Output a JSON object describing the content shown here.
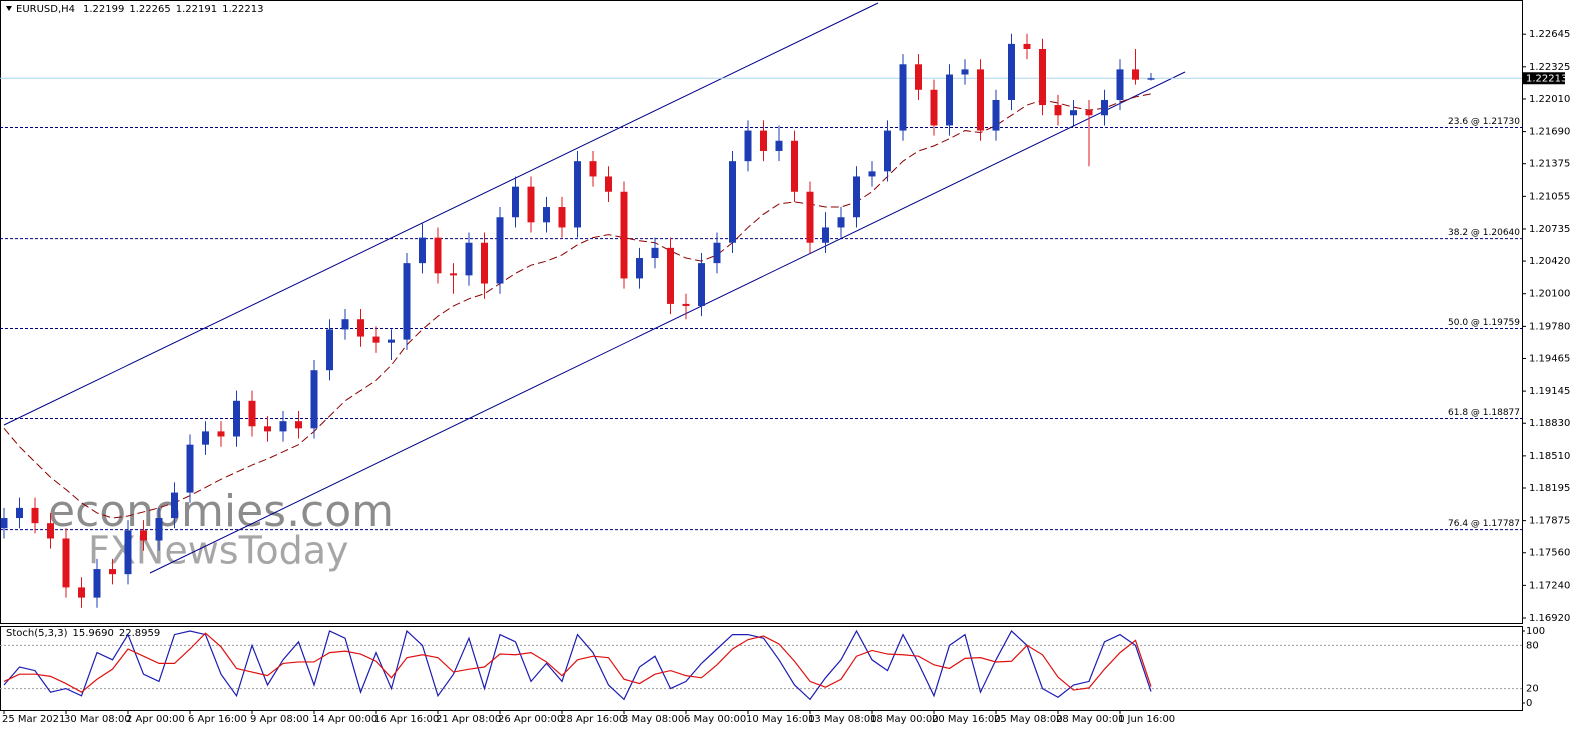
{
  "chart_data": {
    "type": "candlestick",
    "title": "EURUSD,H4",
    "categories": [
      "25 Mar 2021",
      null,
      null,
      null,
      "30 Mar 08:00",
      null,
      null,
      null,
      "2 Apr 00:00",
      null,
      null,
      null,
      "6 Apr 16:00",
      null,
      null,
      null,
      "9 Apr 08:00",
      null,
      null,
      null,
      "14 Apr 00:00",
      null,
      null,
      null,
      "16 Apr 16:00",
      null,
      null,
      null,
      "21 Apr 08:00",
      null,
      null,
      null,
      "26 Apr 00:00",
      null,
      null,
      null,
      "28 Apr 16:00",
      null,
      null,
      null,
      "3 May 08:00",
      null,
      null,
      null,
      "6 May 00:00",
      null,
      null,
      null,
      "10 May 16:00",
      null,
      null,
      null,
      "13 May 08:00",
      null,
      null,
      null,
      "18 May 00:00",
      null,
      null,
      null,
      "20 May 16:00",
      null,
      null,
      null,
      "25 May 08:00",
      null,
      null,
      null,
      "28 May 00:00",
      null,
      null,
      null,
      "1 Jun 16:00",
      null,
      null
    ],
    "open": [
      1.178,
      1.179,
      1.18,
      1.1785,
      1.177,
      1.1722,
      1.1712,
      1.174,
      1.1735,
      1.1778,
      1.1768,
      1.179,
      1.1815,
      1.1862,
      1.1875,
      1.187,
      1.1905,
      1.188,
      1.1875,
      1.1885,
      1.1878,
      1.1935,
      1.1975,
      1.1985,
      1.1968,
      1.1962,
      1.1965,
      1.204,
      1.2065,
      1.203,
      1.2028,
      1.206,
      1.202,
      1.2085,
      1.2115,
      1.208,
      1.2095,
      1.2075,
      1.214,
      1.2125,
      1.211,
      1.2025,
      1.2045,
      1.2055,
      1.2,
      1.1998,
      1.204,
      1.206,
      1.214,
      1.217,
      1.215,
      1.216,
      1.211,
      1.206,
      1.2075,
      1.2085,
      1.2125,
      1.213,
      1.217,
      1.2235,
      1.221,
      1.2175,
      1.2225,
      1.223,
      1.217,
      1.22,
      1.2255,
      1.225,
      1.2195,
      1.2185,
      1.219,
      1.2185,
      1.22,
      1.223,
      1.22199
    ],
    "high": [
      1.18,
      1.181,
      1.181,
      1.1795,
      1.178,
      1.1732,
      1.175,
      1.175,
      1.1788,
      1.1788,
      1.18,
      1.1825,
      1.1872,
      1.1885,
      1.1885,
      1.1915,
      1.1915,
      1.189,
      1.1895,
      1.1895,
      1.1945,
      1.1985,
      1.1995,
      1.1995,
      1.1978,
      1.1975,
      1.205,
      1.208,
      1.2075,
      1.204,
      1.207,
      1.207,
      1.2095,
      1.2125,
      1.2125,
      1.2105,
      1.2105,
      1.215,
      1.215,
      1.2135,
      1.212,
      1.2055,
      1.2065,
      1.2065,
      1.201,
      1.205,
      1.207,
      1.215,
      1.218,
      1.218,
      1.2175,
      1.217,
      1.212,
      1.209,
      1.2095,
      1.2135,
      1.214,
      1.218,
      1.2245,
      1.2245,
      1.222,
      1.2235,
      1.224,
      1.224,
      1.221,
      1.2265,
      1.2265,
      1.226,
      1.2205,
      1.22,
      1.22,
      1.221,
      1.224,
      1.225,
      1.22265
    ],
    "low": [
      1.177,
      1.178,
      1.1775,
      1.176,
      1.1712,
      1.1702,
      1.1702,
      1.1725,
      1.1725,
      1.1758,
      1.1758,
      1.178,
      1.1805,
      1.1852,
      1.186,
      1.186,
      1.187,
      1.1865,
      1.1865,
      1.1868,
      1.1868,
      1.1925,
      1.1965,
      1.1958,
      1.1952,
      1.1945,
      1.1955,
      1.203,
      1.202,
      1.201,
      1.2018,
      1.2005,
      1.201,
      1.2075,
      1.207,
      1.207,
      1.2065,
      1.2065,
      1.2115,
      1.21,
      1.2015,
      1.2015,
      1.2035,
      1.199,
      1.1985,
      1.1988,
      1.203,
      1.205,
      1.213,
      1.214,
      1.214,
      1.21,
      1.205,
      1.205,
      1.2065,
      1.2075,
      1.2115,
      1.212,
      1.216,
      1.22,
      1.2165,
      1.2165,
      1.2215,
      1.216,
      1.216,
      1.219,
      1.224,
      1.2185,
      1.2175,
      1.2175,
      1.2135,
      1.2175,
      1.219,
      1.2215,
      1.22191
    ],
    "close": [
      1.179,
      1.18,
      1.1785,
      1.177,
      1.1722,
      1.1712,
      1.174,
      1.1735,
      1.1778,
      1.1768,
      1.179,
      1.1815,
      1.1862,
      1.1875,
      1.187,
      1.1905,
      1.188,
      1.1875,
      1.1885,
      1.1878,
      1.1935,
      1.1975,
      1.1985,
      1.1968,
      1.1962,
      1.1965,
      1.204,
      1.2065,
      1.203,
      1.2028,
      1.206,
      1.202,
      1.2085,
      1.2115,
      1.208,
      1.2095,
      1.2075,
      1.214,
      1.2125,
      1.211,
      1.2025,
      1.2045,
      1.2055,
      1.2,
      1.1998,
      1.204,
      1.206,
      1.214,
      1.217,
      1.215,
      1.216,
      1.211,
      1.206,
      1.2075,
      1.2085,
      1.2125,
      1.213,
      1.217,
      1.2235,
      1.221,
      1.2175,
      1.2225,
      1.223,
      1.217,
      1.22,
      1.2255,
      1.225,
      1.2195,
      1.2185,
      1.219,
      1.2185,
      1.22,
      1.223,
      1.22199,
      1.22213
    ],
    "up_color": "#1e3cb4",
    "down_color": "#e0141c",
    "ylim": [
      1.16871,
      1.22951
    ],
    "yticks": [
      {
        "value": 1.22645,
        "label": "1.22645"
      },
      {
        "value": 1.22325,
        "label": "1.22325"
      },
      {
        "value": 1.2201,
        "label": "1.22010"
      },
      {
        "value": 1.2169,
        "label": "1.21690"
      },
      {
        "value": 1.21375,
        "label": "1.21375"
      },
      {
        "value": 1.21055,
        "label": "1.21055"
      },
      {
        "value": 1.20735,
        "label": "1.20735"
      },
      {
        "value": 1.2042,
        "label": "1.20420"
      },
      {
        "value": 1.201,
        "label": "1.20100"
      },
      {
        "value": 1.1978,
        "label": "1.19780"
      },
      {
        "value": 1.19465,
        "label": "1.19465"
      },
      {
        "value": 1.19145,
        "label": "1.19145"
      },
      {
        "value": 1.1883,
        "label": "1.18830"
      },
      {
        "value": 1.1851,
        "label": "1.18510"
      },
      {
        "value": 1.18195,
        "label": "1.18195"
      },
      {
        "value": 1.17875,
        "label": "1.17875"
      },
      {
        "value": 1.1756,
        "label": "1.17560"
      },
      {
        "value": 1.1724,
        "label": "1.17240"
      },
      {
        "value": 1.1692,
        "label": "1.16920"
      }
    ],
    "ma": {
      "color": "#8b0000",
      "values": [
        1.1878,
        1.186,
        1.1845,
        1.183,
        1.1818,
        1.1805,
        1.1795,
        1.179,
        1.1792,
        1.1796,
        1.18,
        1.1805,
        1.1812,
        1.182,
        1.1828,
        1.1835,
        1.1842,
        1.1848,
        1.1855,
        1.1862,
        1.1875,
        1.189,
        1.1905,
        1.1915,
        1.1925,
        1.194,
        1.196,
        1.1975,
        1.1988,
        1.1998,
        1.2005,
        1.201,
        1.202,
        1.203,
        1.2038,
        1.2042,
        1.2048,
        1.2058,
        1.2065,
        1.2068,
        1.2065,
        1.2062,
        1.206,
        1.2052,
        1.2045,
        1.2042,
        1.2048,
        1.206,
        1.2075,
        1.2088,
        1.2098,
        1.21,
        1.2098,
        1.2095,
        1.2095,
        1.21,
        1.211,
        1.2125,
        1.214,
        1.215,
        1.2155,
        1.2162,
        1.217,
        1.2168,
        1.2175,
        1.2185,
        1.2195,
        1.22,
        1.2197,
        1.2193,
        1.219,
        1.2192,
        1.2198,
        1.2203,
        1.2206
      ]
    },
    "fib_color": "#00007f",
    "fib_levels": [
      {
        "value": 1.2173,
        "label": "23.6 @ 1.21730"
      },
      {
        "value": 1.2064,
        "label": "38.2 @ 1.20640"
      },
      {
        "value": 1.19759,
        "label": "50.0 @ 1.19759"
      },
      {
        "value": 1.18877,
        "label": "61.8 @ 1.18877"
      },
      {
        "value": 1.17787,
        "label": "76.4 @ 1.17787"
      }
    ],
    "current_price_color": "#a9d6ee",
    "watermark": [
      "economies.com",
      "FXNewsToday"
    ],
    "stochastic": {
      "title": "Stoch(5,3,3)",
      "ylim": [
        0,
        100
      ],
      "yticks": [
        0,
        20,
        80,
        100
      ],
      "series": [
        {
          "color": "#1c1cb4",
          "last_label": "15.9690",
          "values": [
            25,
            50,
            45,
            15,
            20,
            10,
            70,
            60,
            95,
            40,
            30,
            95,
            100,
            95,
            40,
            10,
            80,
            25,
            60,
            85,
            25,
            100,
            90,
            15,
            70,
            20,
            100,
            80,
            10,
            40,
            90,
            20,
            95,
            85,
            30,
            55,
            30,
            95,
            70,
            25,
            5,
            50,
            65,
            20,
            30,
            55,
            75,
            95,
            95,
            90,
            60,
            25,
            5,
            35,
            60,
            100,
            60,
            45,
            95,
            55,
            10,
            80,
            95,
            15,
            60,
            100,
            80,
            20,
            8,
            25,
            30,
            85,
            95,
            80,
            15.969
          ]
        },
        {
          "color": "#e01010",
          "last_label": "22.8959",
          "values": [
            30,
            40,
            40,
            37,
            27,
            15,
            33,
            47,
            75,
            65,
            55,
            55,
            75,
            97,
            78,
            48,
            43,
            38,
            55,
            57,
            57,
            70,
            72,
            68,
            58,
            35,
            63,
            67,
            63,
            43,
            47,
            50,
            68,
            67,
            70,
            57,
            38,
            60,
            65,
            63,
            33,
            27,
            40,
            45,
            38,
            35,
            53,
            75,
            88,
            93,
            82,
            58,
            30,
            22,
            33,
            65,
            73,
            68,
            67,
            65,
            53,
            48,
            62,
            63,
            57,
            58,
            80,
            67,
            36,
            18,
            21,
            47,
            70,
            87,
            22.8959
          ]
        }
      ]
    }
  }
}
